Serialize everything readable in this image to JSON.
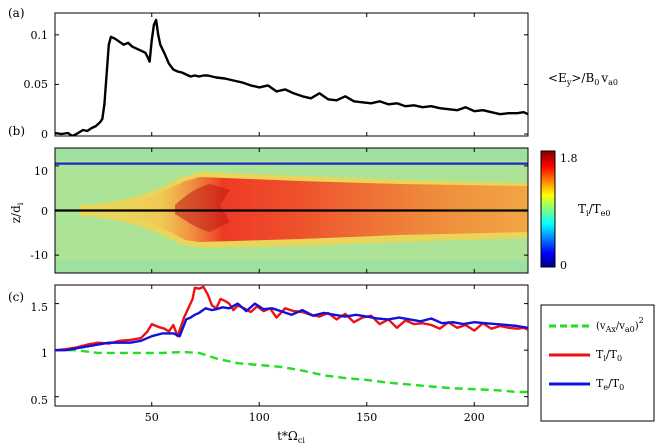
{
  "panel_labels": {
    "a": "(a)",
    "b": "(b)",
    "c": "(c)"
  },
  "x_axis": {
    "label": "t*Ω",
    "label_sub": "ci",
    "ticks": [
      50,
      100,
      150,
      200
    ],
    "range": [
      5,
      225
    ]
  },
  "panel_a": {
    "side_label": {
      "p1": "<E",
      "s1": "y",
      "p2": ">/B",
      "s2": "0",
      "p3": "v",
      "s3": "a0"
    },
    "y_ticks": [
      "0",
      "0.05",
      "0.1"
    ]
  },
  "panel_b": {
    "y_label": {
      "main": "z/d",
      "sub": "i"
    },
    "y_ticks": [
      "10",
      "0",
      "-10"
    ],
    "colorbar": {
      "max": "1.8",
      "min": "0",
      "label_main": "T",
      "label_sub1": "i",
      "label_mid": "/T",
      "label_sub2": "e0"
    }
  },
  "panel_c": {
    "y_ticks": [
      "0.5",
      "1",
      "1.5"
    ],
    "legend": [
      {
        "p1": "(v",
        "s1": "Ax",
        "p2": "/v",
        "s2": "a0",
        "p3": ")",
        "sup": "2",
        "color": "#22dd22",
        "dash": true
      },
      {
        "p1": "T",
        "s1": "i",
        "p2": "/T",
        "s2": "0",
        "p3": "",
        "sup": "",
        "color": "#ee1111",
        "dash": false
      },
      {
        "p1": "T",
        "s1": "e",
        "p2": "/T",
        "s2": "0",
        "p3": "",
        "sup": "",
        "color": "#1111dd",
        "dash": false
      }
    ]
  },
  "chart_data": [
    {
      "type": "line",
      "title": "(a)",
      "ylim": [
        -0.002,
        0.122
      ],
      "xlim": [
        5,
        225
      ],
      "series": [
        {
          "name": "<Ey>/B0 va0",
          "color": "#000000",
          "x": [
            5,
            8,
            11,
            13,
            15,
            18,
            20,
            22,
            24,
            26,
            27,
            28,
            29,
            30,
            31,
            33,
            35,
            37,
            39,
            41,
            43,
            45,
            47,
            48,
            49,
            50,
            51,
            52,
            53,
            54,
            56,
            58,
            60,
            62,
            64,
            66,
            68,
            70,
            72,
            74,
            76,
            78,
            80,
            84,
            88,
            92,
            96,
            100,
            104,
            108,
            112,
            116,
            120,
            124,
            128,
            132,
            136,
            140,
            144,
            148,
            152,
            156,
            160,
            164,
            168,
            172,
            176,
            180,
            184,
            188,
            192,
            196,
            200,
            204,
            208,
            212,
            216,
            220,
            223,
            225
          ],
          "y": [
            0.001,
            0.0,
            0.001,
            -0.002,
            0.0,
            0.004,
            0.003,
            0.006,
            0.008,
            0.012,
            0.015,
            0.03,
            0.06,
            0.09,
            0.098,
            0.096,
            0.093,
            0.09,
            0.092,
            0.088,
            0.086,
            0.084,
            0.082,
            0.078,
            0.073,
            0.095,
            0.11,
            0.115,
            0.1,
            0.09,
            0.081,
            0.071,
            0.065,
            0.063,
            0.062,
            0.06,
            0.058,
            0.059,
            0.058,
            0.059,
            0.059,
            0.058,
            0.057,
            0.056,
            0.054,
            0.052,
            0.049,
            0.047,
            0.049,
            0.043,
            0.045,
            0.041,
            0.038,
            0.036,
            0.041,
            0.035,
            0.034,
            0.038,
            0.033,
            0.032,
            0.031,
            0.033,
            0.03,
            0.031,
            0.028,
            0.029,
            0.027,
            0.028,
            0.026,
            0.025,
            0.024,
            0.027,
            0.023,
            0.024,
            0.022,
            0.02,
            0.021,
            0.021,
            0.022,
            0.02
          ]
        }
      ]
    },
    {
      "type": "heatmap",
      "title": "(b)",
      "ylabel": "z/di",
      "ylim": [
        -14,
        14
      ],
      "xlim": [
        5,
        225
      ],
      "colorbar_range": [
        0,
        1.8
      ],
      "lines": [
        {
          "y": 10.5,
          "color": "#1a2acc"
        },
        {
          "y": 0,
          "color": "#000000"
        }
      ]
    },
    {
      "type": "line",
      "title": "(c)",
      "ylim": [
        0.4,
        1.7
      ],
      "xlim": [
        5,
        225
      ],
      "series": [
        {
          "name": "(vAx/va0)^2",
          "color": "#22dd22",
          "dash": true,
          "x": [
            5,
            15,
            25,
            35,
            45,
            55,
            65,
            72,
            80,
            90,
            100,
            110,
            120,
            130,
            140,
            150,
            160,
            170,
            180,
            190,
            200,
            210,
            220,
            225
          ],
          "y": [
            1.0,
            1.0,
            0.97,
            0.97,
            0.97,
            0.97,
            0.98,
            0.97,
            0.91,
            0.86,
            0.84,
            0.82,
            0.78,
            0.73,
            0.7,
            0.68,
            0.65,
            0.63,
            0.61,
            0.59,
            0.58,
            0.57,
            0.55,
            0.55
          ]
        },
        {
          "name": "Ti/T0",
          "color": "#ee1111",
          "x": [
            5,
            10,
            15,
            20,
            25,
            30,
            35,
            40,
            45,
            48,
            50,
            53,
            56,
            58,
            60,
            62,
            65,
            67,
            69,
            70,
            72,
            74,
            76,
            78,
            80,
            82,
            84,
            86,
            88,
            90,
            93,
            96,
            99,
            102,
            105,
            108,
            112,
            116,
            120,
            124,
            128,
            132,
            136,
            140,
            144,
            148,
            152,
            156,
            160,
            164,
            168,
            172,
            176,
            180,
            184,
            188,
            192,
            196,
            200,
            204,
            208,
            212,
            216,
            220,
            223,
            225
          ],
          "y": [
            1.0,
            1.01,
            1.03,
            1.06,
            1.08,
            1.07,
            1.1,
            1.11,
            1.13,
            1.2,
            1.28,
            1.25,
            1.23,
            1.2,
            1.27,
            1.15,
            1.35,
            1.45,
            1.55,
            1.67,
            1.66,
            1.68,
            1.6,
            1.48,
            1.45,
            1.55,
            1.53,
            1.5,
            1.43,
            1.48,
            1.45,
            1.41,
            1.47,
            1.42,
            1.45,
            1.35,
            1.45,
            1.42,
            1.41,
            1.38,
            1.36,
            1.4,
            1.33,
            1.39,
            1.3,
            1.35,
            1.37,
            1.28,
            1.33,
            1.24,
            1.32,
            1.28,
            1.29,
            1.27,
            1.23,
            1.3,
            1.24,
            1.27,
            1.21,
            1.29,
            1.23,
            1.26,
            1.24,
            1.23,
            1.24,
            1.22
          ]
        },
        {
          "name": "Te/T0",
          "color": "#1111dd",
          "x": [
            5,
            10,
            15,
            20,
            25,
            30,
            35,
            40,
            45,
            50,
            55,
            60,
            63,
            66,
            68,
            70,
            72,
            75,
            78,
            80,
            83,
            86,
            90,
            94,
            98,
            102,
            106,
            110,
            115,
            120,
            125,
            130,
            135,
            140,
            145,
            150,
            155,
            160,
            165,
            170,
            175,
            180,
            185,
            190,
            195,
            200,
            205,
            210,
            215,
            220,
            225
          ],
          "y": [
            1.0,
            1.0,
            1.02,
            1.04,
            1.06,
            1.08,
            1.08,
            1.08,
            1.1,
            1.15,
            1.18,
            1.18,
            1.15,
            1.33,
            1.35,
            1.38,
            1.4,
            1.45,
            1.43,
            1.44,
            1.46,
            1.45,
            1.5,
            1.42,
            1.5,
            1.44,
            1.45,
            1.42,
            1.38,
            1.43,
            1.37,
            1.4,
            1.38,
            1.36,
            1.38,
            1.36,
            1.34,
            1.33,
            1.35,
            1.33,
            1.31,
            1.34,
            1.29,
            1.3,
            1.28,
            1.3,
            1.29,
            1.28,
            1.27,
            1.26,
            1.24
          ]
        }
      ]
    }
  ]
}
